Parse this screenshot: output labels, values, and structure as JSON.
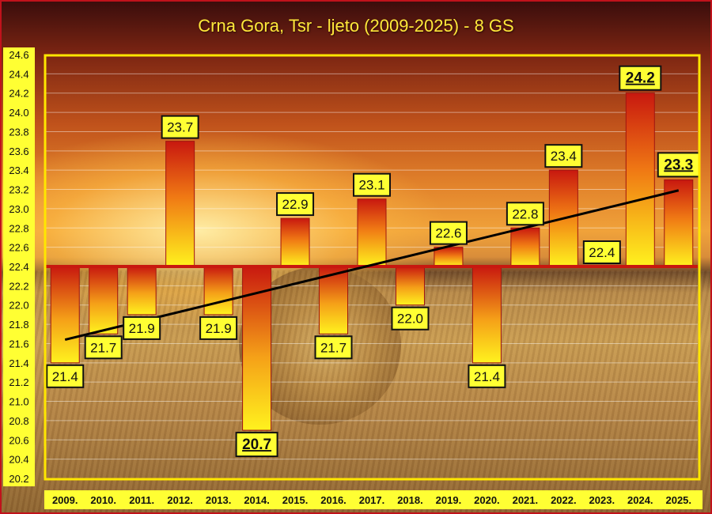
{
  "chart_data": {
    "type": "bar",
    "title": "Crna Gora, Tsr - ljeto (2009-2025) - 8 GS",
    "categories": [
      "2009.",
      "2010.",
      "2011.",
      "2012.",
      "2013.",
      "2014.",
      "2015.",
      "2016.",
      "2017.",
      "2018.",
      "2019.",
      "2020.",
      "2021.",
      "2022.",
      "2023.",
      "2024.",
      "2025."
    ],
    "values": [
      21.4,
      21.7,
      21.9,
      23.7,
      21.9,
      20.7,
      22.9,
      21.7,
      23.1,
      22.0,
      22.6,
      21.4,
      22.8,
      23.4,
      22.4,
      24.2,
      23.3
    ],
    "baseline": 22.4,
    "ylim": [
      20.2,
      24.6
    ],
    "yticks": [
      "20.2",
      "20.4",
      "20.6",
      "20.8",
      "21.0",
      "21.2",
      "21.4",
      "21.6",
      "21.8",
      "22.0",
      "22.2",
      "22.4",
      "22.6",
      "22.8",
      "23.0",
      "23.2",
      "23.4",
      "23.6",
      "23.8",
      "24.0",
      "24.2",
      "24.4",
      "24.6"
    ],
    "data_labels": [
      "21.4",
      "21.7",
      "21.9",
      "23.7",
      "21.9",
      "20.7",
      "22.9",
      "21.7",
      "23.1",
      "22.0",
      "22.6",
      "21.4",
      "22.8",
      "23.4",
      "22.4",
      "24.2",
      "23.3"
    ],
    "emphasized_labels": [
      "2014.",
      "2024.",
      "2025."
    ],
    "trendline": {
      "type": "linear",
      "start": 21.64,
      "end": 23.19
    },
    "grid": true,
    "colors": {
      "bar_top": "#c8180f",
      "bar_bottom": "#fff21e",
      "frame": "#ffe600",
      "label_bg": "#ffff33",
      "title": "#ffe83a",
      "ytick_bg": "#ffff33",
      "trend": "#000000"
    }
  }
}
